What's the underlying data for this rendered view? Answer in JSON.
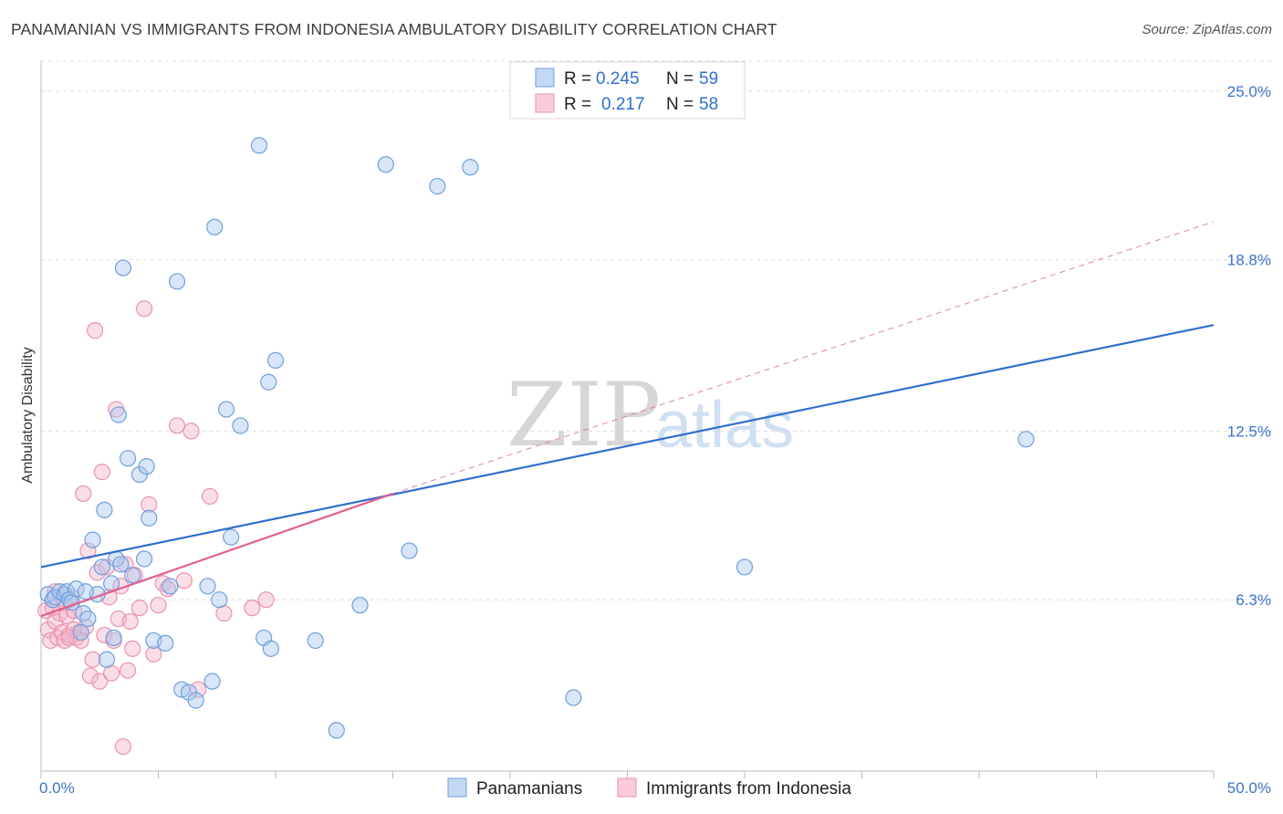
{
  "header": {
    "title": "PANAMANIAN VS IMMIGRANTS FROM INDONESIA AMBULATORY DISABILITY CORRELATION CHART",
    "source": "Source: ZipAtlas.com"
  },
  "watermark": {
    "zip": "ZIP",
    "atlas": "atlas"
  },
  "colors": {
    "blue": "#2f6fcf",
    "blue_fill": "#a9c8ef",
    "pink": "#e0608f",
    "pink_fill": "#f5b6c9",
    "grid": "#dcdcdc",
    "tick_text": "#3a74c9"
  },
  "legend": {
    "rows": [
      {
        "r_label": "R =",
        "r_value": "0.245",
        "n_label": "N =",
        "n_value": "59"
      },
      {
        "r_label": "R =",
        "r_value": "0.217",
        "n_label": "N =",
        "n_value": "58"
      }
    ]
  },
  "bottom_legend": [
    "Panamanians",
    "Immigrants from Indonesia"
  ],
  "chart_data": {
    "type": "scatter",
    "title": "PANAMANIAN VS IMMIGRANTS FROM INDONESIA AMBULATORY DISABILITY CORRELATION CHART",
    "xlabel": "",
    "ylabel": "Ambulatory Disability",
    "xlim": [
      0,
      50
    ],
    "ylim": [
      0,
      26.1
    ],
    "x_tick_labels": [
      "0.0%",
      "50.0%"
    ],
    "y_ticks": [
      6.3,
      12.5,
      18.8,
      25.0
    ],
    "y_tick_labels": [
      "6.3%",
      "12.5%",
      "18.8%",
      "25.0%"
    ],
    "grid": true,
    "legend_position": "top-center",
    "series": [
      {
        "name": "Panamanians",
        "R": 0.245,
        "N": 59,
        "trend": {
          "x": [
            0,
            50
          ],
          "y": [
            7.5,
            16.4
          ]
        },
        "points": [
          [
            0.3,
            6.5
          ],
          [
            0.5,
            6.3
          ],
          [
            0.6,
            6.4
          ],
          [
            0.8,
            6.6
          ],
          [
            1.0,
            6.5
          ],
          [
            1.1,
            6.6
          ],
          [
            1.2,
            6.3
          ],
          [
            1.3,
            6.2
          ],
          [
            1.5,
            6.7
          ],
          [
            1.7,
            5.1
          ],
          [
            1.8,
            5.8
          ],
          [
            2.0,
            5.6
          ],
          [
            2.2,
            8.5
          ],
          [
            2.4,
            6.5
          ],
          [
            2.6,
            7.5
          ],
          [
            2.7,
            9.6
          ],
          [
            2.8,
            4.1
          ],
          [
            3.0,
            6.9
          ],
          [
            3.1,
            4.9
          ],
          [
            3.2,
            7.8
          ],
          [
            3.3,
            13.1
          ],
          [
            3.4,
            7.6
          ],
          [
            3.5,
            18.5
          ],
          [
            3.7,
            11.5
          ],
          [
            3.9,
            7.2
          ],
          [
            4.2,
            10.9
          ],
          [
            4.4,
            7.8
          ],
          [
            4.5,
            11.2
          ],
          [
            4.6,
            9.3
          ],
          [
            4.8,
            4.8
          ],
          [
            5.3,
            4.7
          ],
          [
            5.5,
            6.8
          ],
          [
            5.8,
            18.0
          ],
          [
            6.0,
            3.0
          ],
          [
            6.3,
            2.9
          ],
          [
            6.6,
            2.6
          ],
          [
            7.1,
            6.8
          ],
          [
            7.3,
            3.3
          ],
          [
            7.4,
            20.0
          ],
          [
            7.6,
            6.3
          ],
          [
            7.9,
            13.3
          ],
          [
            8.1,
            8.6
          ],
          [
            8.5,
            12.7
          ],
          [
            9.3,
            23.0
          ],
          [
            9.5,
            4.9
          ],
          [
            9.7,
            14.3
          ],
          [
            9.8,
            4.5
          ],
          [
            10.0,
            15.1
          ],
          [
            11.7,
            4.8
          ],
          [
            12.6,
            1.5
          ],
          [
            13.6,
            6.1
          ],
          [
            14.7,
            22.3
          ],
          [
            15.7,
            8.1
          ],
          [
            16.9,
            21.5
          ],
          [
            18.3,
            22.2
          ],
          [
            22.7,
            2.7
          ],
          [
            30.0,
            7.5
          ],
          [
            42.0,
            12.2
          ],
          [
            1.9,
            6.6
          ]
        ]
      },
      {
        "name": "Immigrants from Indonesia",
        "R": 0.217,
        "N": 58,
        "trend": {
          "x": [
            0,
            15
          ],
          "y": [
            5.7,
            10.2
          ]
        },
        "trend_extended": {
          "x": [
            15,
            50
          ],
          "y": [
            10.2,
            20.2
          ]
        },
        "points": [
          [
            0.2,
            5.9
          ],
          [
            0.3,
            5.2
          ],
          [
            0.4,
            4.8
          ],
          [
            0.5,
            6.0
          ],
          [
            0.6,
            5.5
          ],
          [
            0.7,
            4.9
          ],
          [
            0.8,
            5.8
          ],
          [
            0.9,
            5.1
          ],
          [
            1.0,
            4.8
          ],
          [
            1.1,
            5.7
          ],
          [
            1.2,
            5.0
          ],
          [
            1.3,
            6.4
          ],
          [
            1.4,
            5.9
          ],
          [
            1.5,
            4.9
          ],
          [
            1.6,
            5.1
          ],
          [
            1.7,
            4.8
          ],
          [
            1.8,
            10.2
          ],
          [
            1.9,
            5.3
          ],
          [
            2.0,
            8.1
          ],
          [
            2.1,
            3.5
          ],
          [
            2.2,
            4.1
          ],
          [
            2.3,
            16.2
          ],
          [
            2.4,
            7.3
          ],
          [
            2.5,
            3.3
          ],
          [
            2.6,
            11.0
          ],
          [
            2.7,
            5.0
          ],
          [
            2.8,
            7.5
          ],
          [
            2.9,
            6.4
          ],
          [
            3.0,
            3.6
          ],
          [
            3.1,
            4.8
          ],
          [
            3.2,
            13.3
          ],
          [
            3.3,
            5.6
          ],
          [
            3.4,
            6.8
          ],
          [
            3.5,
            0.9
          ],
          [
            3.6,
            7.6
          ],
          [
            3.7,
            3.7
          ],
          [
            3.8,
            5.5
          ],
          [
            3.9,
            4.5
          ],
          [
            4.0,
            7.2
          ],
          [
            4.2,
            6.0
          ],
          [
            4.4,
            17.0
          ],
          [
            4.6,
            9.8
          ],
          [
            4.8,
            4.3
          ],
          [
            5.0,
            6.1
          ],
          [
            5.2,
            6.9
          ],
          [
            5.4,
            6.7
          ],
          [
            5.8,
            12.7
          ],
          [
            6.1,
            7.0
          ],
          [
            6.4,
            12.5
          ],
          [
            6.7,
            3.0
          ],
          [
            7.2,
            10.1
          ],
          [
            7.8,
            5.8
          ],
          [
            9.0,
            6.0
          ],
          [
            9.6,
            6.3
          ],
          [
            1.0,
            6.2
          ],
          [
            1.4,
            5.2
          ],
          [
            0.6,
            6.6
          ],
          [
            1.2,
            4.9
          ]
        ]
      }
    ]
  }
}
